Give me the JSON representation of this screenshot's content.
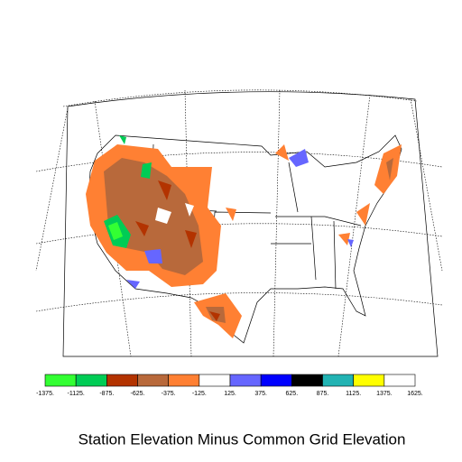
{
  "title": "Station Elevation Minus Common Grid Elevation",
  "colorbar": {
    "colors": [
      "#33ff33",
      "#00cc55",
      "#b33300",
      "#b8693b",
      "#ff8033",
      "#ffffff",
      "#6666ff",
      "#0000ff",
      "#000000",
      "#22b3b3",
      "#ffff00",
      "#ffffff"
    ],
    "bounds": [
      {
        "value": -1375,
        "label": "-1375."
      },
      {
        "value": -1125,
        "label": "-1125."
      },
      {
        "value": -875,
        "label": "-875."
      },
      {
        "value": -625,
        "label": "-625."
      },
      {
        "value": -375,
        "label": "-375."
      },
      {
        "value": -125,
        "label": "-125."
      },
      {
        "value": 125,
        "label": "125."
      },
      {
        "value": 375,
        "label": "375."
      },
      {
        "value": 625,
        "label": "625."
      },
      {
        "value": 875,
        "label": "875."
      },
      {
        "value": 1125,
        "label": "1125."
      },
      {
        "value": 1375,
        "label": "1375."
      },
      {
        "value": 1625,
        "label": "1625."
      }
    ]
  }
}
